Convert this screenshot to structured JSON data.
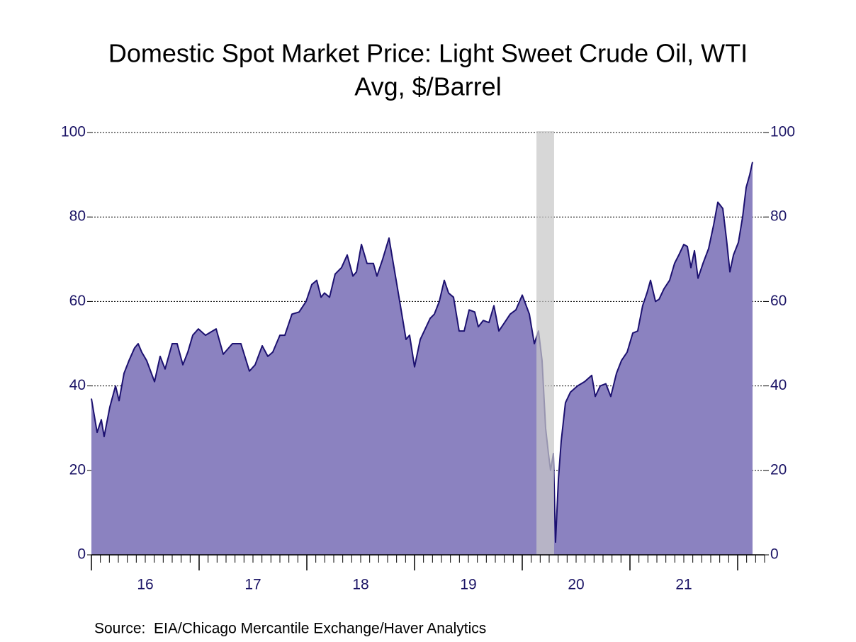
{
  "chart_data": {
    "type": "area",
    "title": "Domestic Spot Market Price: Light Sweet Crude Oil, WTI",
    "subtitle": "Avg, $/Barrel",
    "source": "Source:  EIA/Chicago Mercantile Exchange/Haver Analytics",
    "x": [
      2016.0,
      2016.053,
      2016.092,
      2016.118,
      2016.171,
      2016.224,
      2016.257,
      2016.303,
      2016.349,
      2016.401,
      2016.434,
      2016.467,
      2016.513,
      2016.586,
      2016.638,
      2016.684,
      2016.75,
      2016.796,
      2016.849,
      2016.895,
      2016.941,
      2016.993,
      2017.059,
      2017.125,
      2017.158,
      2017.224,
      2017.309,
      2017.388,
      2017.467,
      2017.52,
      2017.586,
      2017.638,
      2017.684,
      2017.75,
      2017.796,
      2017.862,
      2017.928,
      2017.993,
      2018.046,
      2018.092,
      2018.132,
      2018.164,
      2018.211,
      2018.263,
      2018.322,
      2018.375,
      2018.428,
      2018.461,
      2018.507,
      2018.559,
      2018.618,
      2018.651,
      2018.704,
      2018.763,
      2018.836,
      2018.882,
      2018.921,
      2018.954,
      2019.0,
      2019.053,
      2019.099,
      2019.145,
      2019.184,
      2019.23,
      2019.276,
      2019.316,
      2019.362,
      2019.414,
      2019.461,
      2019.507,
      2019.559,
      2019.592,
      2019.638,
      2019.691,
      2019.737,
      2019.783,
      2019.836,
      2019.888,
      2019.941,
      2020.0,
      2020.066,
      2020.112,
      2020.151,
      2020.184,
      2020.217,
      2020.243,
      2020.263,
      2020.289,
      2020.309,
      2020.336,
      2020.362,
      2020.401,
      2020.447,
      2020.513,
      2020.579,
      2020.645,
      2020.678,
      2020.724,
      2020.776,
      2020.822,
      2020.875,
      2020.921,
      2020.974,
      2021.026,
      2021.072,
      2021.118,
      2021.158,
      2021.191,
      2021.237,
      2021.27,
      2021.316,
      2021.368,
      2021.414,
      2021.454,
      2021.5,
      2021.533,
      2021.566,
      2021.599,
      2021.632,
      2021.678,
      2021.73,
      2021.776,
      2021.816,
      2021.862,
      2021.895,
      2021.928,
      2021.961,
      2022.007,
      2022.046,
      2022.079,
      2022.112,
      2022.138
    ],
    "series": [
      {
        "name": "WTI",
        "color": "#8b82c0",
        "line_color": "#1c1170",
        "values": [
          37,
          29,
          32,
          28,
          35,
          40,
          36.5,
          43,
          46,
          49,
          50,
          48,
          46,
          41,
          47,
          44,
          50,
          50,
          45,
          48,
          52,
          53.5,
          52,
          53,
          53.5,
          47.5,
          50,
          50,
          43.5,
          45,
          49.5,
          47,
          48,
          52,
          52,
          57,
          57.5,
          60,
          64,
          65,
          61,
          62,
          61,
          66.5,
          68,
          71,
          66,
          67,
          73.5,
          69,
          69,
          66,
          70,
          75,
          64,
          57,
          51,
          52,
          44.5,
          51,
          53.5,
          56,
          57,
          60,
          65,
          62,
          61,
          53,
          53,
          58,
          57.5,
          54,
          55.5,
          55,
          59,
          53,
          55,
          57,
          58,
          61.5,
          57,
          50,
          53,
          46,
          30,
          24,
          20,
          24,
          3,
          18,
          27,
          36,
          38.5,
          40,
          41,
          42.5,
          37.5,
          40,
          40.5,
          37.5,
          43,
          46,
          48,
          52.5,
          53,
          59,
          62,
          65,
          60,
          60.5,
          63,
          65,
          69,
          71,
          73.5,
          73,
          68,
          72,
          65.5,
          69,
          72.5,
          78,
          83.5,
          82,
          75,
          67,
          71,
          74,
          80,
          87,
          90,
          93
        ]
      }
    ],
    "recession": [
      2020.132,
      2020.296
    ],
    "xlim": [
      2016,
      2022.25
    ],
    "xticks": [
      {
        "value": 2016.5,
        "label": "16"
      },
      {
        "value": 2017.5,
        "label": "17"
      },
      {
        "value": 2018.5,
        "label": "18"
      },
      {
        "value": 2019.5,
        "label": "19"
      },
      {
        "value": 2020.5,
        "label": "20"
      },
      {
        "value": 2021.5,
        "label": "21"
      }
    ],
    "xmajorticks": [
      2016,
      2017,
      2018,
      2019,
      2020,
      2021,
      2022
    ],
    "ylim": [
      0,
      100
    ],
    "yticks": [
      0,
      20,
      40,
      60,
      80,
      100
    ],
    "grid": true
  }
}
